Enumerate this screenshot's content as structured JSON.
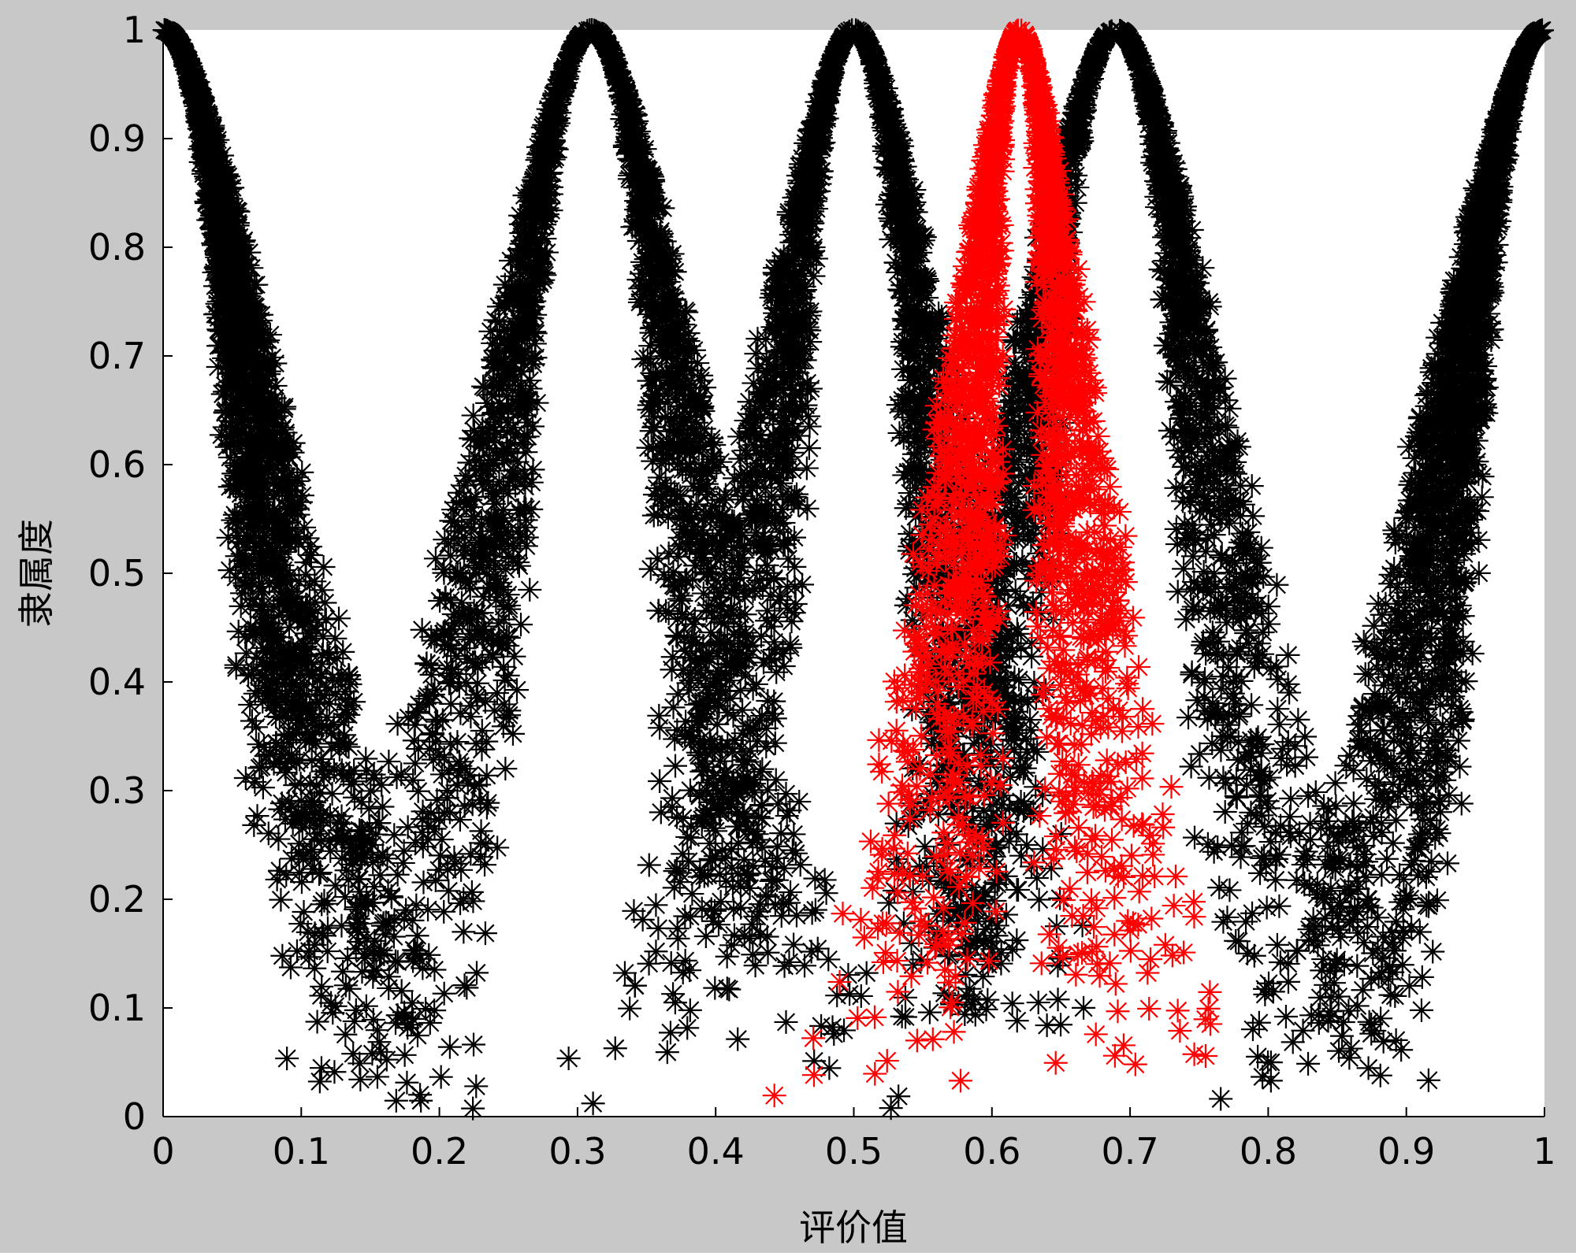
{
  "chart_data": {
    "type": "scatter",
    "title": "",
    "xlabel": "评价值",
    "ylabel": "隶属度",
    "xlim": [
      0,
      1
    ],
    "ylim": [
      0,
      1
    ],
    "xticks": [
      "0",
      "0.1",
      "0.2",
      "0.3",
      "0.4",
      "0.5",
      "0.6",
      "0.7",
      "0.8",
      "0.9",
      "1"
    ],
    "yticks": [
      "0",
      "0.1",
      "0.2",
      "0.3",
      "0.4",
      "0.5",
      "0.6",
      "0.7",
      "0.8",
      "0.9",
      "1"
    ],
    "grid": false,
    "marker": "*",
    "series": [
      {
        "color": "#000000",
        "peak_x": 0.0,
        "width": 0.1,
        "n": 1700,
        "description_curve": "membership peak at evaluation value 0"
      },
      {
        "color": "#000000",
        "peak_x": 0.31,
        "width": 0.095,
        "n": 1700
      },
      {
        "color": "#000000",
        "peak_x": 0.5,
        "width": 0.085,
        "n": 1700
      },
      {
        "color": "#000000",
        "peak_x": 0.69,
        "width": 0.095,
        "n": 1700
      },
      {
        "color": "#000000",
        "peak_x": 1.0,
        "width": 0.1,
        "n": 1700
      },
      {
        "color": "#ff0000",
        "peak_x": 0.62,
        "width": 0.055,
        "n": 1900
      }
    ]
  }
}
